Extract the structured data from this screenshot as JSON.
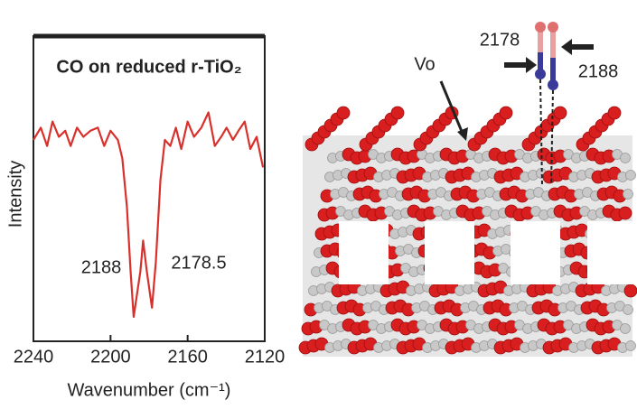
{
  "chart_data": {
    "type": "line",
    "title": "CO on reduced r-TiO₂",
    "x_label": "Wavenumber (cm⁻¹)",
    "y_label": "Intensity",
    "x": [
      2240,
      2236.2,
      2232.9,
      2230.1,
      2226.8,
      2223.5,
      2220.7,
      2217.4,
      2214.1,
      2210.4,
      2206.6,
      2203.3,
      2200,
      2196.2,
      2193.9,
      2191.5,
      2189.6,
      2188,
      2184.5,
      2183.1,
      2181.2,
      2178.5,
      2176.5,
      2174.1,
      2171.8,
      2169,
      2166.1,
      2163.3,
      2160,
      2156.7,
      2152.9,
      2149.2,
      2145.9,
      2142.6,
      2139.8,
      2136.5,
      2133.6,
      2130.4,
      2127.5,
      2124.2,
      2120.9
    ],
    "series": [
      {
        "name": "CO on reduced r-TiO₂",
        "color": "#d9302b",
        "values": [
          0.66,
          0.7,
          0.64,
          0.72,
          0.67,
          0.69,
          0.64,
          0.7,
          0.67,
          0.69,
          0.7,
          0.64,
          0.69,
          0.66,
          0.6,
          0.44,
          0.23,
          0.08,
          0.23,
          0.33,
          0.23,
          0.11,
          0.26,
          0.53,
          0.66,
          0.64,
          0.7,
          0.63,
          0.72,
          0.67,
          0.7,
          0.75,
          0.64,
          0.67,
          0.7,
          0.66,
          0.69,
          0.72,
          0.63,
          0.67,
          0.57
        ]
      }
    ],
    "xlim": [
      2240,
      2120
    ],
    "xticks": [
      2240,
      2200,
      2160,
      2120
    ],
    "ylim": [
      0,
      1
    ],
    "annotations": [
      "2188",
      "2178.5"
    ]
  },
  "structure": {
    "labels": [
      "Vo",
      "2178",
      "2188"
    ]
  }
}
